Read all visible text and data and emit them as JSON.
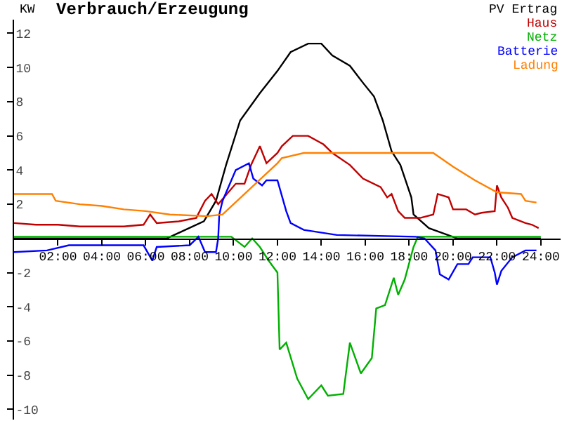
{
  "chart_data": {
    "type": "line",
    "title": "Verbrauch/Erzeugung",
    "ylabel": "KW",
    "xlim": [
      0,
      24.9
    ],
    "ylim": [
      -10.6,
      12.8
    ],
    "xticks": [
      {
        "value": 2,
        "label": "02:00"
      },
      {
        "value": 4,
        "label": "04:00"
      },
      {
        "value": 6,
        "label": "06:00"
      },
      {
        "value": 8,
        "label": "08:00"
      },
      {
        "value": 10,
        "label": "10:00"
      },
      {
        "value": 12,
        "label": "12:00"
      },
      {
        "value": 14,
        "label": "14:00"
      },
      {
        "value": 16,
        "label": "16:00"
      },
      {
        "value": 18,
        "label": "18:00"
      },
      {
        "value": 20,
        "label": "20:00"
      },
      {
        "value": 22,
        "label": "22:00"
      },
      {
        "value": 24,
        "label": "24:00"
      }
    ],
    "yticks": [
      -10,
      -8,
      -6,
      -4,
      -2,
      2,
      4,
      6,
      8,
      10,
      12
    ],
    "legend": "top right",
    "marker": "none",
    "line_style": "solid",
    "series": [
      {
        "name": "PV Ertrag",
        "color": "#000000",
        "x": [
          0,
          6.95,
          8.65,
          9.2,
          9.66,
          10.3,
          11.2,
          12.0,
          12.6,
          13.4,
          14.0,
          14.5,
          15.3,
          15.9,
          16.4,
          16.8,
          17.2,
          17.6,
          18.1,
          18.2,
          18.9,
          20.2,
          24
        ],
        "values": [
          0,
          0,
          1.0,
          2.2,
          4.3,
          6.9,
          8.5,
          9.8,
          10.9,
          11.4,
          11.4,
          10.7,
          10.1,
          9.1,
          8.3,
          6.9,
          5.1,
          4.3,
          2.4,
          1.4,
          0.6,
          0,
          0
        ]
      },
      {
        "name": "Haus",
        "color": "#c00000",
        "x": [
          0,
          1,
          2,
          3,
          4,
          5,
          5.9,
          6.2,
          6.5,
          7.5,
          8.3,
          8.7,
          9.0,
          9.3,
          10.1,
          10.5,
          10.8,
          11.2,
          11.5,
          12.0,
          12.2,
          12.7,
          13.4,
          14.1,
          14.5,
          15.3,
          15.9,
          16.7,
          17.0,
          17.2,
          17.5,
          17.8,
          18.5,
          19.1,
          19.3,
          19.8,
          20.0,
          20.6,
          21.0,
          21.3,
          21.9,
          22.0,
          22.2,
          22.5,
          22.7,
          23.3,
          23.6,
          23.9
        ],
        "values": [
          0.9,
          0.8,
          0.8,
          0.7,
          0.7,
          0.7,
          0.8,
          1.4,
          0.9,
          1.0,
          1.2,
          2.2,
          2.6,
          2.0,
          3.2,
          3.2,
          4.3,
          5.4,
          4.4,
          5.0,
          5.4,
          6.0,
          6.0,
          5.5,
          5.0,
          4.3,
          3.5,
          3.0,
          2.4,
          2.6,
          1.6,
          1.2,
          1.2,
          1.4,
          2.6,
          2.4,
          1.7,
          1.7,
          1.4,
          1.5,
          1.6,
          3.1,
          2.4,
          1.8,
          1.2,
          0.9,
          0.8,
          0.6
        ]
      },
      {
        "name": "Netz",
        "color": "#00b000",
        "x": [
          0,
          9.9,
          10.5,
          10.85,
          11.2,
          11.6,
          12.0,
          12.1,
          12.4,
          12.9,
          13.4,
          14.0,
          14.3,
          15.0,
          15.3,
          15.8,
          16.3,
          16.5,
          16.9,
          17.3,
          17.5,
          17.8,
          18.2,
          18.4,
          24
        ],
        "values": [
          0.1,
          0.1,
          -0.5,
          0,
          -0.5,
          -1.3,
          -2.0,
          -6.5,
          -6.1,
          -8.2,
          -9.4,
          -8.6,
          -9.2,
          -9.1,
          -6.1,
          -7.9,
          -7.0,
          -4.1,
          -3.9,
          -2.3,
          -3.3,
          -2.4,
          -0.5,
          0.1,
          0.1
        ]
      },
      {
        "name": "Batterie",
        "color": "#0000ff",
        "x": [
          0,
          1.5,
          2.5,
          5.9,
          6.3,
          6.5,
          8.0,
          8.4,
          8.7,
          9.2,
          9.3,
          9.35,
          9.5,
          10.1,
          10.7,
          10.9,
          11.3,
          11.5,
          12.0,
          12.4,
          12.6,
          13.2,
          14.7,
          18.3,
          18.7,
          19.2,
          19.4,
          19.8,
          20.2,
          20.7,
          20.9,
          21.7,
          21.9,
          22.0,
          22.2,
          22.7,
          23.3,
          23.8
        ],
        "values": [
          -0.8,
          -0.7,
          -0.4,
          -0.4,
          -1.3,
          -0.5,
          -0.4,
          0.1,
          -0.8,
          -0.8,
          0,
          1.4,
          2.2,
          4.0,
          4.4,
          3.5,
          3.1,
          3.4,
          3.4,
          1.6,
          0.9,
          0.5,
          0.2,
          0.1,
          0,
          -0.7,
          -2.1,
          -2.4,
          -1.5,
          -1.5,
          -1.1,
          -1.1,
          -2.0,
          -2.7,
          -1.9,
          -1.1,
          -0.7,
          -0.7
        ]
      },
      {
        "name": "Ladung",
        "color": "#ff8000",
        "x": [
          0,
          1.73,
          1.9,
          3,
          4,
          5,
          6,
          7.1,
          8.8,
          9.5,
          12.0,
          12.2,
          13.2,
          19.1,
          20.0,
          21.0,
          22.0,
          23.1,
          23.3,
          23.8
        ],
        "values": [
          2.6,
          2.6,
          2.2,
          2.0,
          1.9,
          1.7,
          1.6,
          1.4,
          1.3,
          1.4,
          4.4,
          4.7,
          5.0,
          5.0,
          4.2,
          3.4,
          2.7,
          2.6,
          2.2,
          2.1
        ]
      }
    ]
  }
}
